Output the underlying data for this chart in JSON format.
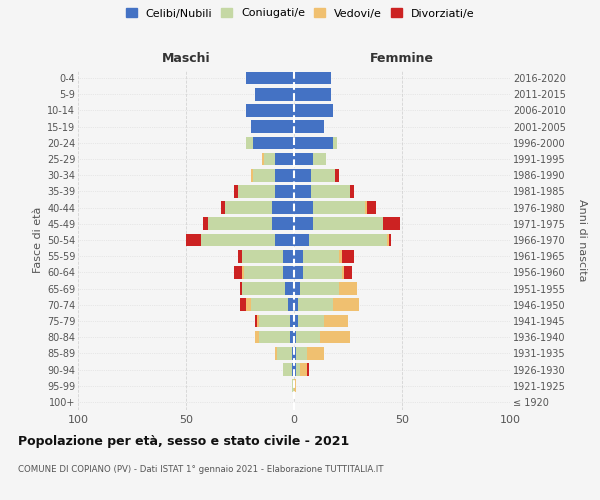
{
  "age_groups": [
    "100+",
    "95-99",
    "90-94",
    "85-89",
    "80-84",
    "75-79",
    "70-74",
    "65-69",
    "60-64",
    "55-59",
    "50-54",
    "45-49",
    "40-44",
    "35-39",
    "30-34",
    "25-29",
    "20-24",
    "15-19",
    "10-14",
    "5-9",
    "0-4"
  ],
  "birth_years": [
    "≤ 1920",
    "1921-1925",
    "1926-1930",
    "1931-1935",
    "1936-1940",
    "1941-1945",
    "1946-1950",
    "1951-1955",
    "1956-1960",
    "1961-1965",
    "1966-1970",
    "1971-1975",
    "1976-1980",
    "1981-1985",
    "1986-1990",
    "1991-1995",
    "1996-2000",
    "2001-2005",
    "2006-2010",
    "2011-2015",
    "2016-2020"
  ],
  "male": {
    "celibi": [
      0,
      0,
      1,
      1,
      2,
      2,
      3,
      4,
      5,
      5,
      9,
      10,
      10,
      9,
      9,
      9,
      19,
      20,
      22,
      18,
      22
    ],
    "coniugati": [
      0,
      1,
      4,
      7,
      14,
      14,
      17,
      20,
      18,
      19,
      34,
      30,
      22,
      17,
      10,
      5,
      3,
      0,
      0,
      0,
      0
    ],
    "vedovi": [
      0,
      0,
      0,
      1,
      2,
      1,
      2,
      0,
      1,
      0,
      0,
      0,
      0,
      0,
      1,
      1,
      0,
      0,
      0,
      0,
      0
    ],
    "divorziati": [
      0,
      0,
      0,
      0,
      0,
      1,
      3,
      1,
      4,
      2,
      7,
      2,
      2,
      2,
      0,
      0,
      0,
      0,
      0,
      0,
      0
    ]
  },
  "female": {
    "nubili": [
      0,
      0,
      1,
      1,
      1,
      2,
      2,
      3,
      4,
      4,
      7,
      9,
      9,
      8,
      8,
      9,
      18,
      14,
      18,
      17,
      17
    ],
    "coniugate": [
      0,
      0,
      2,
      5,
      11,
      12,
      16,
      18,
      18,
      17,
      36,
      32,
      24,
      18,
      11,
      6,
      2,
      0,
      0,
      0,
      0
    ],
    "vedove": [
      0,
      1,
      3,
      8,
      14,
      11,
      12,
      8,
      1,
      1,
      1,
      0,
      1,
      0,
      0,
      0,
      0,
      0,
      0,
      0,
      0
    ],
    "divorziate": [
      0,
      0,
      1,
      0,
      0,
      0,
      0,
      0,
      4,
      6,
      1,
      8,
      4,
      2,
      2,
      0,
      0,
      0,
      0,
      0,
      0
    ]
  },
  "colors": {
    "celibi_nubili": "#4472c4",
    "coniugati": "#c5d8a4",
    "vedovi": "#f0c070",
    "divorziati": "#cc2222"
  },
  "xlim": 100,
  "title": "Popolazione per età, sesso e stato civile - 2021",
  "subtitle": "COMUNE DI COPIANO (PV) - Dati ISTAT 1° gennaio 2021 - Elaborazione TUTTITALIA.IT",
  "ylabel_left": "Fasce di età",
  "ylabel_right": "Anni di nascita",
  "xlabel_left": "Maschi",
  "xlabel_right": "Femmine",
  "bg_color": "#f5f5f5",
  "grid_color": "#cccccc"
}
